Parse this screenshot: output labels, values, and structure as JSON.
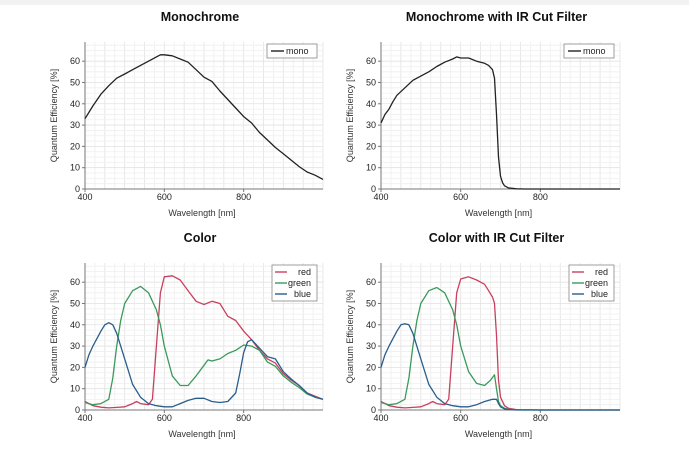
{
  "chart_data": [
    {
      "type": "line",
      "title": "Monochrome",
      "xlabel": "Wavelength [nm]",
      "ylabel": "Quantum Efficiency [%]",
      "xlim": [
        400,
        1000
      ],
      "ylim": [
        0,
        69
      ],
      "xticks": [
        400,
        600,
        800
      ],
      "yticks": [
        0,
        10,
        20,
        30,
        40,
        50,
        60
      ],
      "grid": true,
      "legend": "top-right",
      "series": [
        {
          "name": "mono",
          "color": "#222222",
          "x": [
            400,
            420,
            440,
            460,
            480,
            500,
            520,
            540,
            560,
            580,
            590,
            600,
            620,
            640,
            660,
            680,
            700,
            720,
            740,
            760,
            780,
            800,
            820,
            840,
            860,
            880,
            900,
            920,
            940,
            960,
            980,
            1000
          ],
          "y": [
            33,
            39,
            44.5,
            48.5,
            52,
            54,
            56,
            58,
            60,
            62,
            63,
            63,
            62.5,
            61,
            59.5,
            56,
            52.5,
            50.5,
            46,
            42,
            38,
            34,
            31,
            26.5,
            23,
            19.5,
            16.5,
            13.5,
            10.5,
            8,
            6.5,
            4.5
          ]
        }
      ]
    },
    {
      "type": "line",
      "title": "Monochrome with IR Cut Filter",
      "xlabel": "Wavelength [nm]",
      "ylabel": "Quantum Efficiency [%]",
      "xlim": [
        400,
        1000
      ],
      "ylim": [
        0,
        69
      ],
      "xticks": [
        400,
        600,
        800
      ],
      "yticks": [
        0,
        10,
        20,
        30,
        40,
        50,
        60
      ],
      "grid": true,
      "legend": "top-right",
      "series": [
        {
          "name": "mono",
          "color": "#222222",
          "x": [
            400,
            410,
            420,
            430,
            440,
            460,
            480,
            500,
            520,
            540,
            560,
            580,
            590,
            600,
            620,
            640,
            660,
            670,
            680,
            685,
            690,
            695,
            700,
            705,
            710,
            720,
            740,
            760,
            800,
            900,
            1000
          ],
          "y": [
            31,
            35,
            37.5,
            41,
            44,
            47.5,
            51,
            53,
            55,
            57.5,
            59.5,
            61,
            62,
            61.5,
            61.5,
            60,
            59,
            58,
            56,
            52,
            35,
            15,
            6,
            3,
            1.5,
            0.5,
            0.1,
            0,
            0,
            0,
            0
          ]
        }
      ]
    },
    {
      "type": "line",
      "title": "Color",
      "xlabel": "Wavelength [nm]",
      "ylabel": "Quantum Efficiency [%]",
      "xlim": [
        400,
        1000
      ],
      "ylim": [
        0,
        69
      ],
      "xticks": [
        400,
        600,
        800
      ],
      "yticks": [
        0,
        10,
        20,
        30,
        40,
        50,
        60
      ],
      "grid": true,
      "legend": "top-right",
      "series": [
        {
          "name": "red",
          "color": "#c9405f",
          "x": [
            400,
            420,
            440,
            460,
            480,
            500,
            520,
            530,
            540,
            560,
            570,
            580,
            590,
            600,
            620,
            640,
            660,
            680,
            700,
            720,
            740,
            760,
            780,
            800,
            820,
            840,
            860,
            880,
            900,
            920,
            940,
            960,
            980,
            1000
          ],
          "y": [
            4,
            2,
            1.3,
            1,
            1.2,
            1.5,
            3,
            4,
            3,
            2.5,
            5,
            30,
            55,
            62.5,
            63,
            61,
            56,
            51,
            49.5,
            51,
            50,
            44,
            42,
            37,
            33,
            28,
            24,
            22,
            17,
            14,
            11.5,
            8,
            6.5,
            5
          ]
        },
        {
          "name": "green",
          "color": "#3a9a5c",
          "x": [
            400,
            420,
            440,
            460,
            470,
            480,
            490,
            500,
            520,
            540,
            560,
            580,
            590,
            600,
            620,
            640,
            660,
            680,
            700,
            710,
            720,
            740,
            760,
            780,
            800,
            820,
            840,
            860,
            880,
            900,
            920,
            940,
            960,
            980,
            1000
          ],
          "y": [
            3.5,
            2.5,
            3,
            5,
            15,
            30,
            42,
            50,
            56,
            58,
            55,
            47,
            40,
            30,
            16,
            11.5,
            11.5,
            16,
            21,
            23.5,
            23,
            24,
            26.5,
            28,
            30.5,
            30,
            28,
            22.5,
            20.5,
            16,
            13,
            10.5,
            7.5,
            6,
            5
          ]
        },
        {
          "name": "blue",
          "color": "#2a5d8c",
          "x": [
            400,
            410,
            420,
            440,
            450,
            460,
            470,
            480,
            500,
            520,
            540,
            560,
            580,
            600,
            620,
            640,
            660,
            680,
            700,
            720,
            740,
            760,
            780,
            790,
            800,
            810,
            820,
            830,
            840,
            860,
            880,
            900,
            920,
            940,
            960,
            980,
            1000
          ],
          "y": [
            20,
            26,
            30,
            37,
            40,
            41,
            40,
            36,
            24,
            12,
            6,
            3,
            2,
            1.5,
            1.5,
            3,
            4.5,
            5.5,
            5.5,
            4,
            3.5,
            4,
            8,
            17,
            27,
            32,
            33,
            31,
            29,
            25,
            24,
            18,
            14.5,
            11.5,
            8,
            6,
            5
          ]
        }
      ]
    },
    {
      "type": "line",
      "title": "Color with IR Cut Filter",
      "xlabel": "Wavelength [nm]",
      "ylabel": "Quantum Efficiency [%]",
      "xlim": [
        400,
        1000
      ],
      "ylim": [
        0,
        69
      ],
      "xticks": [
        400,
        600,
        800
      ],
      "yticks": [
        0,
        10,
        20,
        30,
        40,
        50,
        60
      ],
      "grid": true,
      "legend": "top-right",
      "series": [
        {
          "name": "red",
          "color": "#c9405f",
          "x": [
            400,
            420,
            440,
            460,
            480,
            500,
            520,
            530,
            540,
            560,
            570,
            580,
            590,
            600,
            620,
            640,
            660,
            670,
            680,
            685,
            690,
            695,
            700,
            710,
            720,
            740,
            800,
            1000
          ],
          "y": [
            4,
            2,
            1.3,
            1,
            1.2,
            1.5,
            3,
            4,
            3,
            2.5,
            5,
            30,
            55,
            61.5,
            62.5,
            61,
            59,
            56,
            53,
            50,
            35,
            14,
            6,
            2,
            0.8,
            0.2,
            0,
            0
          ]
        },
        {
          "name": "green",
          "color": "#3a9a5c",
          "x": [
            400,
            420,
            440,
            460,
            470,
            480,
            490,
            500,
            520,
            540,
            560,
            580,
            590,
            600,
            620,
            640,
            660,
            675,
            685,
            690,
            695,
            700,
            710,
            720,
            740,
            800,
            1000
          ],
          "y": [
            3.5,
            2.5,
            3,
            5,
            15,
            30,
            42,
            50,
            56,
            57.5,
            55,
            47,
            40,
            30,
            18,
            12.5,
            11.5,
            14,
            16.5,
            10,
            4,
            2,
            0.8,
            0.3,
            0.1,
            0,
            0
          ]
        },
        {
          "name": "blue",
          "color": "#2a5d8c",
          "x": [
            400,
            410,
            420,
            440,
            450,
            460,
            470,
            480,
            500,
            520,
            540,
            560,
            580,
            600,
            620,
            640,
            660,
            680,
            690,
            695,
            700,
            710,
            720,
            740,
            800,
            1000
          ],
          "y": [
            20,
            26,
            30,
            37,
            40,
            40.5,
            40,
            36,
            24,
            12,
            6,
            3,
            2,
            1.5,
            1.5,
            2.5,
            4,
            5,
            5,
            3,
            1.5,
            0.5,
            0.2,
            0,
            0,
            0
          ]
        }
      ]
    }
  ]
}
